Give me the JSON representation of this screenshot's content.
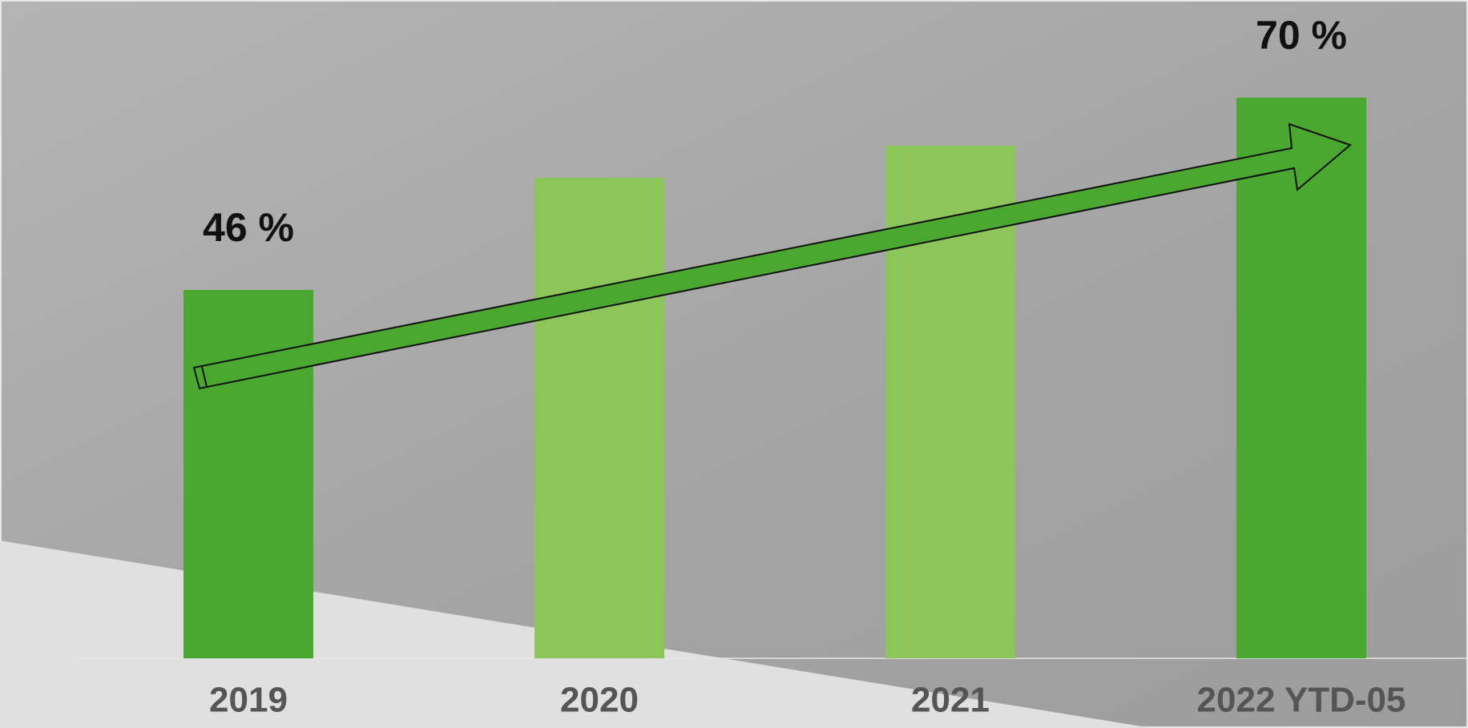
{
  "chart_data": {
    "type": "bar",
    "categories": [
      "2019",
      "2020",
      "2021",
      "2022 YTD-05"
    ],
    "values": [
      46,
      60,
      64,
      70
    ],
    "value_labels": [
      "46 %",
      null,
      null,
      "70 %"
    ],
    "colors": [
      "#4aa72f",
      "#8cc55a",
      "#8cc55a",
      "#4aa72f"
    ],
    "ylim": [
      0,
      82
    ]
  }
}
